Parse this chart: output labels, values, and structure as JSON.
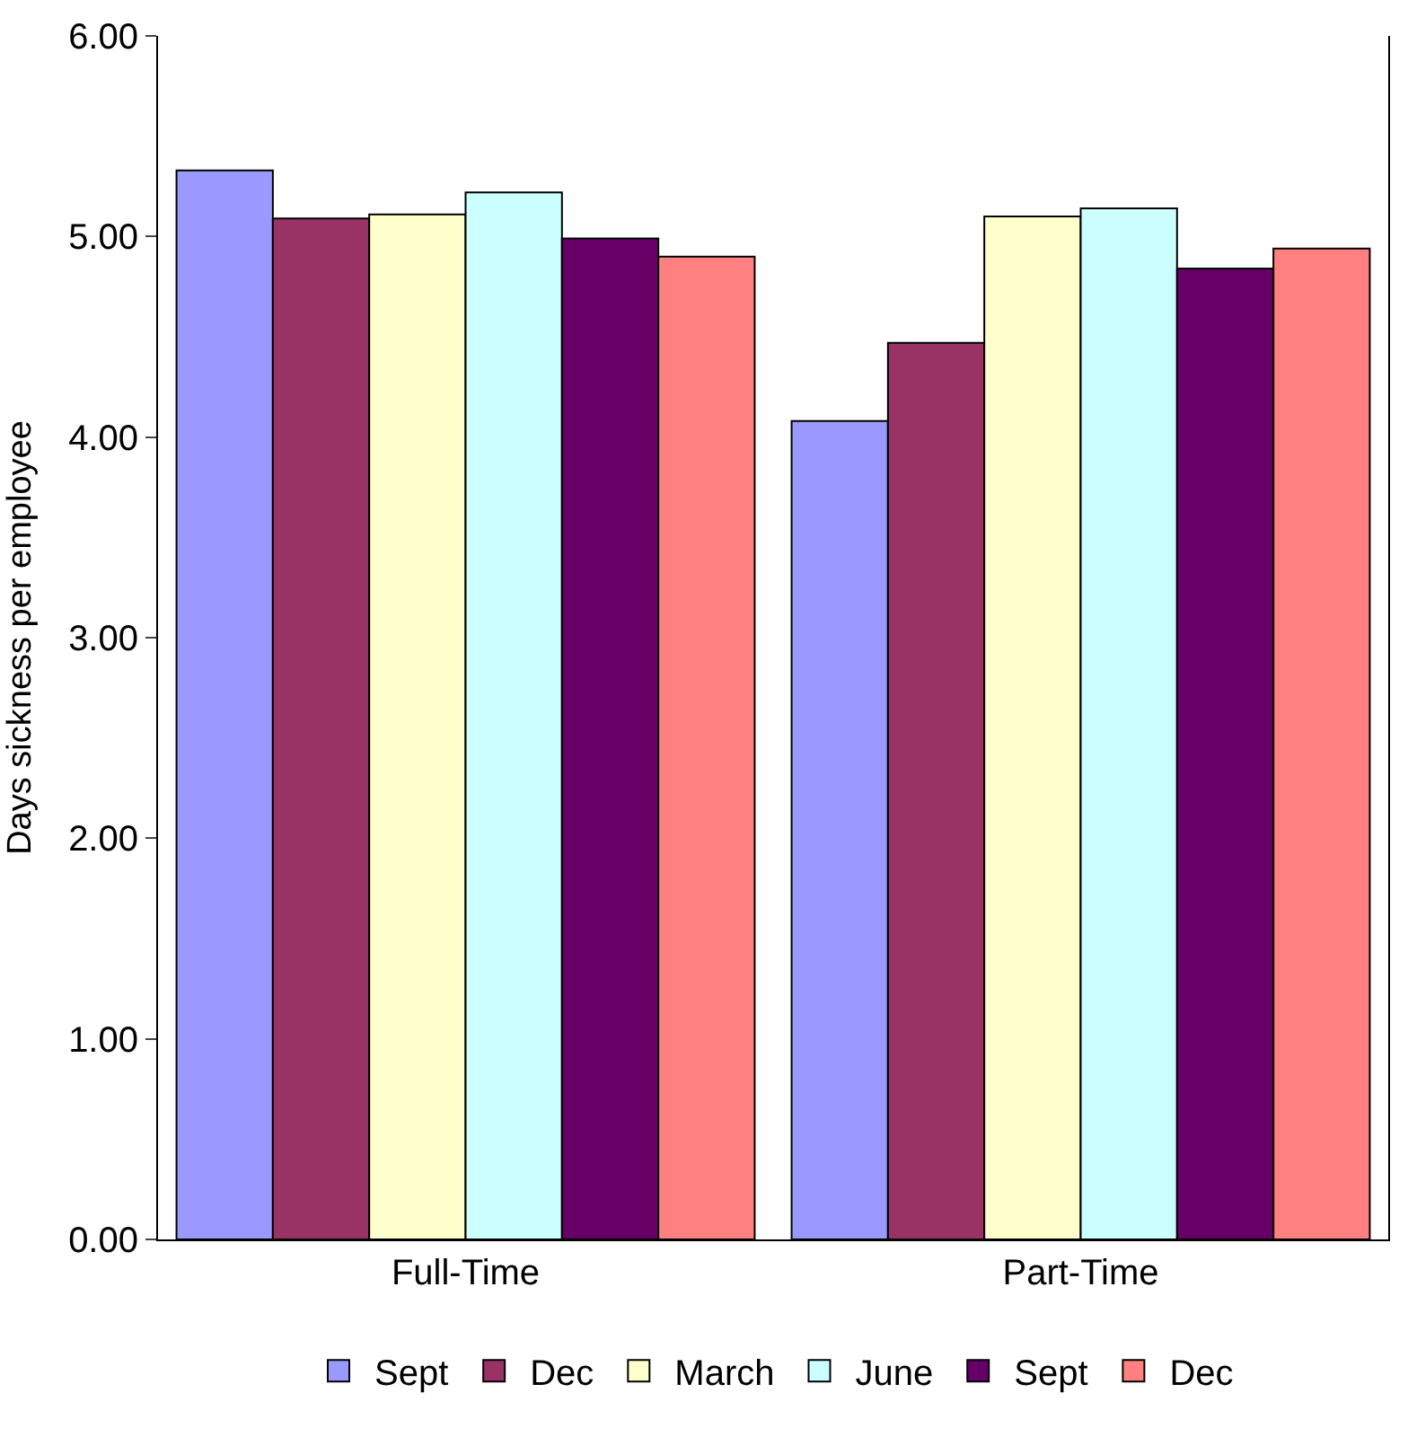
{
  "chart_data": {
    "type": "bar",
    "ylabel": "Days sickness per employee",
    "categories": [
      "Full-Time",
      "Part-Time"
    ],
    "series": [
      {
        "name": "Sept",
        "color": "#9999ff",
        "values": [
          5.33,
          4.08
        ]
      },
      {
        "name": "Dec",
        "color": "#993366",
        "values": [
          5.09,
          4.47
        ]
      },
      {
        "name": "March",
        "color": "#ffffcc",
        "values": [
          5.11,
          5.1
        ]
      },
      {
        "name": "June",
        "color": "#ccffff",
        "values": [
          5.22,
          5.14
        ]
      },
      {
        "name": "Sept",
        "color": "#660066",
        "values": [
          4.99,
          4.84
        ]
      },
      {
        "name": "Dec",
        "color": "#ff8080",
        "values": [
          4.9,
          4.94
        ]
      }
    ],
    "ylim": [
      0,
      6
    ],
    "yticks": [
      {
        "value": 0,
        "label": "0.00"
      },
      {
        "value": 1,
        "label": "1.00"
      },
      {
        "value": 2,
        "label": "2.00"
      },
      {
        "value": 3,
        "label": "3.00"
      },
      {
        "value": 4,
        "label": "4.00"
      },
      {
        "value": 5,
        "label": "5.00"
      },
      {
        "value": 6,
        "label": "6.00"
      }
    ],
    "legend": "bottom"
  }
}
